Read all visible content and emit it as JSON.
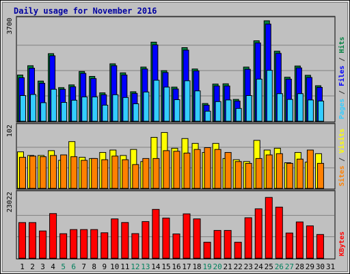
{
  "chart_data": {
    "type": "bar",
    "title": "Daily usage for November 2016",
    "x": [
      "1",
      "2",
      "3",
      "4",
      "5",
      "6",
      "7",
      "8",
      "9",
      "10",
      "11",
      "12",
      "13",
      "14",
      "15",
      "16",
      "17",
      "18",
      "19",
      "20",
      "21",
      "22",
      "23",
      "24",
      "25",
      "26",
      "27",
      "28",
      "29",
      "30",
      "31"
    ],
    "weekend_days": [
      "5",
      "6",
      "12",
      "13",
      "19",
      "20",
      "26",
      "27"
    ],
    "panels": [
      {
        "id": "pages_files_hits",
        "y_max_label": "3700",
        "ylim": [
          0,
          3700
        ],
        "labels": [
          {
            "text": "Pages",
            "color": "#33ccff"
          },
          {
            "text": " / ",
            "color": "#333333"
          },
          {
            "text": "Files",
            "color": "#0000ff"
          },
          {
            "text": " / ",
            "color": "#333333"
          },
          {
            "text": "Hits",
            "color": "#008040"
          }
        ],
        "series": [
          {
            "name": "Hits",
            "color": "#008040",
            "values": [
              1700,
              2040,
              1480,
              2480,
              1240,
              1340,
              1830,
              1650,
              1050,
              2110,
              1780,
              1090,
              1990,
              2900,
              1860,
              1260,
              2700,
              1920,
              660,
              1370,
              1380,
              810,
              1990,
              2950,
              3680,
              2570,
              1620,
              2030,
              1690,
              1310,
              0
            ]
          },
          {
            "name": "Files",
            "color": "#0000ff",
            "values": [
              1600,
              1950,
              1400,
              2400,
              1180,
              1270,
              1760,
              1570,
              980,
              2040,
              1700,
              1030,
              1920,
              2800,
              1790,
              1190,
              2610,
              1850,
              600,
              1300,
              1300,
              750,
              1910,
              2870,
              3560,
              2490,
              1550,
              1960,
              1610,
              1250,
              0
            ]
          },
          {
            "name": "Pages",
            "color": "#33ccff",
            "values": [
              950,
              990,
              690,
              1180,
              700,
              780,
              900,
              900,
              600,
              980,
              880,
              650,
              1080,
              1510,
              1260,
              800,
              1490,
              1120,
              380,
              730,
              790,
              480,
              950,
              1550,
              1870,
              1020,
              810,
              1020,
              790,
              750,
              0
            ]
          }
        ]
      },
      {
        "id": "visits_sites",
        "y_max_label": "102",
        "ylim": [
          0,
          102
        ],
        "labels": [
          {
            "text": "Sites",
            "color": "#ff8000"
          },
          {
            "text": " / ",
            "color": "#333333"
          },
          {
            "text": "Visits",
            "color": "#ffff00"
          }
        ],
        "series": [
          {
            "name": "Visits",
            "color": "#ffff00",
            "values": [
              61,
              55,
              55,
              63,
              47,
              78,
              52,
              50,
              60,
              64,
              55,
              65,
              45,
              85,
              93,
              67,
              83,
              75,
              60,
              75,
              50,
              48,
              45,
              80,
              64,
              67,
              43,
              60,
              44,
              58,
              0
            ]
          },
          {
            "name": "Sites",
            "color": "#ff8000",
            "values": [
              52,
              54,
              53,
              55,
              56,
              53,
              47,
              50,
              48,
              54,
              48,
              40,
              50,
              50,
              63,
              62,
              59,
              65,
              68,
              65,
              60,
              45,
              42,
              50,
              56,
              58,
              42,
              49,
              64,
              42,
              0
            ]
          }
        ]
      },
      {
        "id": "kbytes",
        "y_max_label": "23022",
        "ylim": [
          0,
          23022
        ],
        "labels": [
          {
            "text": "KBytes",
            "color": "#ff0000"
          }
        ],
        "series": [
          {
            "name": "KBytes",
            "color": "#ff0000",
            "values": [
              12880,
              12880,
              9880,
              16100,
              8900,
              10380,
              10380,
              10380,
              9240,
              14200,
              12900,
              8930,
              13240,
              17590,
              14500,
              8820,
              16000,
              14200,
              5850,
              10070,
              10070,
              5850,
              14600,
              17800,
              21870,
              18410,
              9150,
              13100,
              11700,
              8620,
              0
            ]
          }
        ]
      }
    ]
  }
}
